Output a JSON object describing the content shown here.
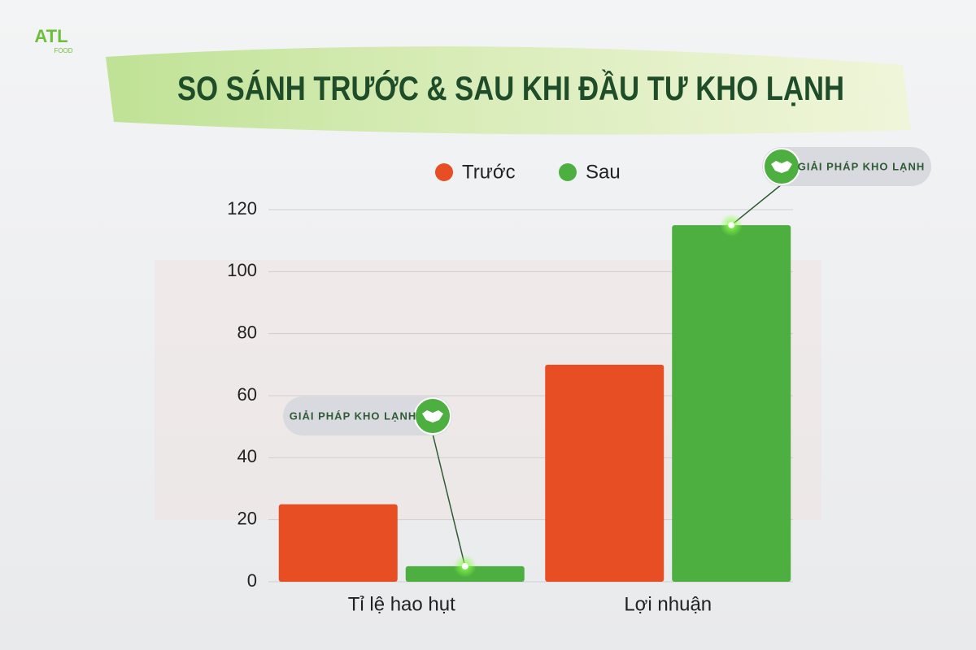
{
  "logo": {
    "name": "ATL",
    "sub": "FOOD"
  },
  "chart_data": {
    "type": "bar",
    "title": "SO SÁNH TRƯỚC & SAU KHI ĐẦU TƯ KHO LẠNH",
    "categories": [
      "Tỉ lệ hao hụt",
      "Lợi nhuận"
    ],
    "series": [
      {
        "name": "Trước",
        "color": "#e84e24",
        "values": [
          25,
          70
        ]
      },
      {
        "name": "Sau",
        "color": "#4caf3f",
        "values": [
          5,
          115
        ]
      }
    ],
    "ylim": [
      0,
      120
    ],
    "yticks": [
      0,
      20,
      40,
      60,
      80,
      100,
      120
    ],
    "grid": true,
    "legend": "top",
    "annotations": [
      {
        "text": "GIẢI PHÁP KHO LẠNH",
        "series": 1,
        "index": 0
      },
      {
        "text": "GIẢI PHÁP KHO LẠNH",
        "series": 1,
        "index": 1
      }
    ]
  }
}
